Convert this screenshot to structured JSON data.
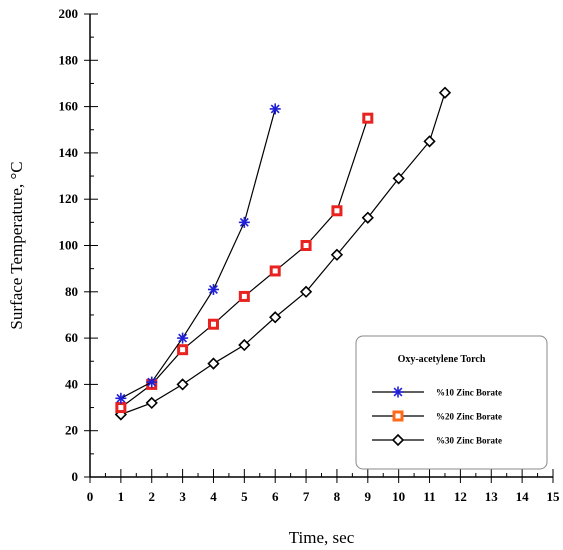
{
  "chart_data": {
    "type": "line",
    "xlabel": "Time, sec",
    "ylabel": "Surface Temperature, °C",
    "xlim": [
      0,
      15
    ],
    "ylim": [
      0,
      200
    ],
    "x_ticks": [
      0,
      1,
      2,
      3,
      4,
      5,
      6,
      7,
      8,
      9,
      10,
      11,
      12,
      13,
      14,
      15
    ],
    "y_ticks": [
      0,
      20,
      40,
      60,
      80,
      100,
      120,
      140,
      160,
      180,
      200
    ],
    "grid": false,
    "legend": {
      "title": "Oxy-acetylene Torch",
      "placement": "bottom-right"
    },
    "series": [
      {
        "name": "%10 Zinc Borate",
        "marker": "asterisk",
        "color": "#1f1fd6",
        "line_color": "#000000",
        "x": [
          1,
          2,
          3,
          4,
          5,
          6
        ],
        "y": [
          34,
          41,
          60,
          81,
          110,
          159
        ]
      },
      {
        "name": "%20 Zinc Borate",
        "marker": "square",
        "color": "#e8221e",
        "line_color": "#000000",
        "x": [
          1,
          2,
          3,
          4,
          5,
          6,
          7,
          8,
          9
        ],
        "y": [
          30,
          40,
          55,
          66,
          78,
          89,
          100,
          115,
          155
        ]
      },
      {
        "name": "%30 Zinc Borate",
        "marker": "diamond",
        "color": "#000000",
        "line_color": "#000000",
        "x": [
          1,
          2,
          3,
          4,
          5,
          6,
          7,
          8,
          9,
          10,
          11,
          11.5
        ],
        "y": [
          27,
          32,
          40,
          49,
          57,
          69,
          80,
          96,
          112,
          129,
          145,
          166
        ]
      }
    ]
  }
}
